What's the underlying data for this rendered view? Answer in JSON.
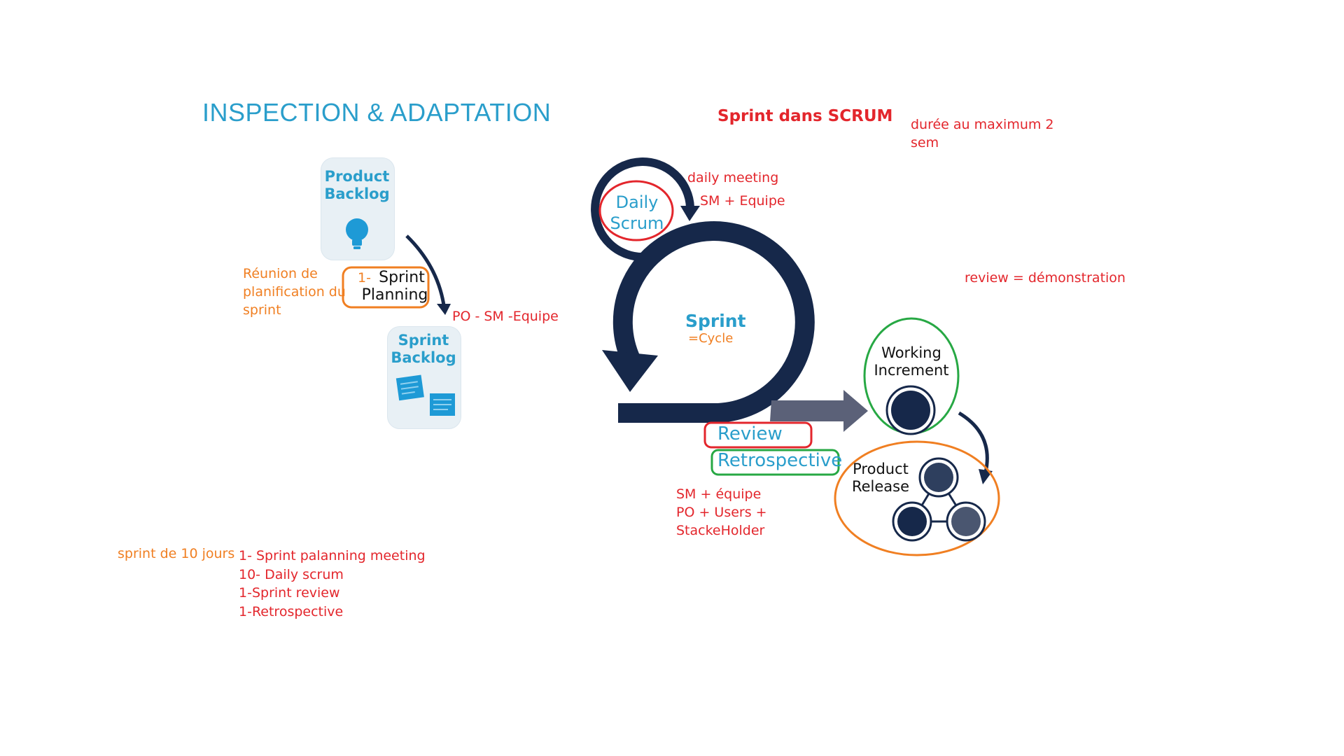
{
  "title": "INSPECTION & ADAPTATION",
  "header": {
    "sprint_title": "Sprint dans SCRUM",
    "duration_line1": "durée au maximum 2",
    "duration_line2": "sem"
  },
  "planning_side": {
    "product_backlog_line1": "Product",
    "product_backlog_line2": "Backlog",
    "reunion_line1": "Réunion de",
    "reunion_line2": "planification du",
    "reunion_line3": "sprint",
    "planning_number": "1-",
    "planning_line1": "Sprint",
    "planning_line2": "Planning",
    "participants": "PO - SM -Equipe",
    "sprint_backlog_line1": "Sprint",
    "sprint_backlog_line2": "Backlog"
  },
  "cycle": {
    "daily_meeting": "daily meeting",
    "daily_participants": "SM + Equipe",
    "daily_line1": "Daily",
    "daily_line2": "Scrum",
    "sprint_label": "Sprint",
    "cycle_label": "=Cycle",
    "review_note": "review = démonstration",
    "review_label": "Review",
    "retro_label": "Retrospective",
    "review_participants_line1": "SM  + équipe",
    "review_participants_line2": "PO + Users +",
    "review_participants_line3": "StackeHolder",
    "working_line1": "Working",
    "working_line2": "Increment",
    "release_line1": "Product",
    "release_line2": "Release"
  },
  "summary": {
    "label": "sprint de 10 jours",
    "items": [
      "1- Sprint palanning meeting",
      "10- Daily scrum",
      "1-Sprint review",
      "1-Retrospective"
    ]
  },
  "colors": {
    "navy": "#16284a",
    "accent_blue": "#2a9ecb",
    "red": "#e3262c",
    "orange": "#f07f22",
    "green": "#27a844",
    "arrow_gray": "#5b6178"
  }
}
